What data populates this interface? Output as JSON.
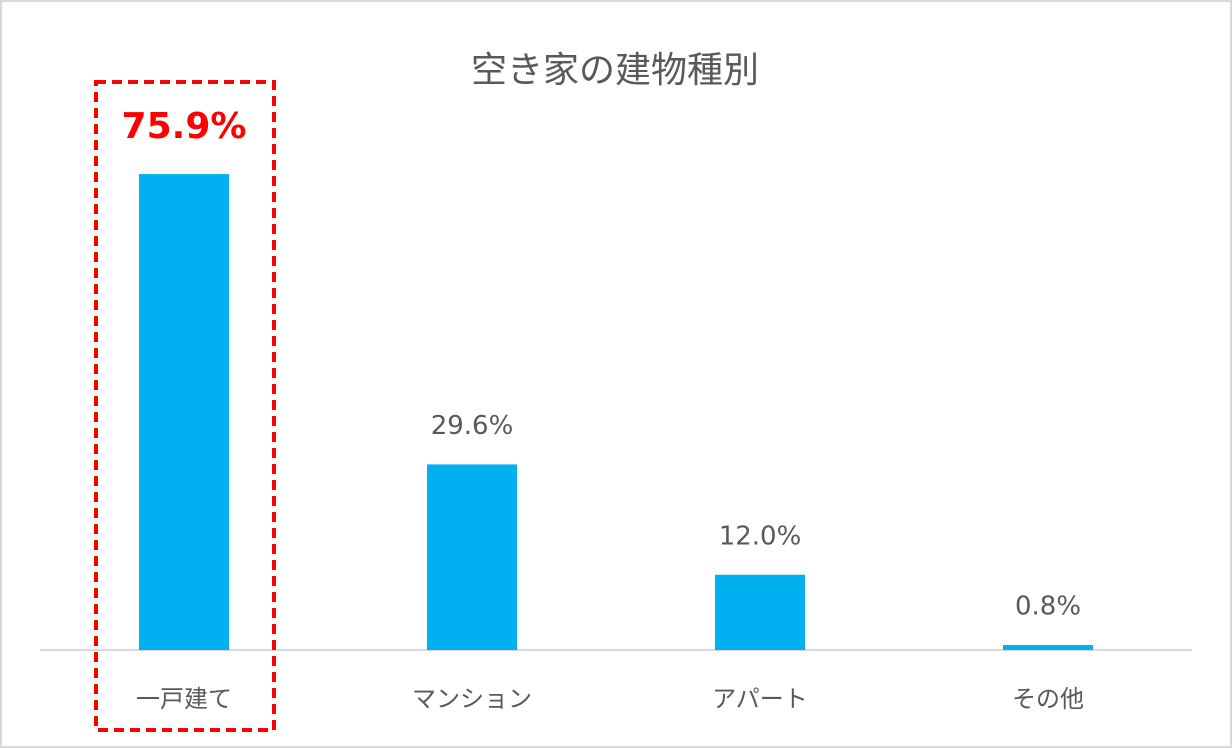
{
  "chart_data": {
    "type": "bar",
    "title": "空き家の建物種別",
    "categories": [
      "一戸建て",
      "マンション",
      "アパート",
      "その他"
    ],
    "values": [
      75.9,
      29.6,
      12.0,
      0.8
    ],
    "value_labels": [
      "75.9%",
      "29.6%",
      "12.0%",
      "0.8%"
    ],
    "color": "#00b0f0",
    "highlight": [
      true,
      false,
      false,
      false
    ],
    "highlight_color": "#ff0000"
  }
}
